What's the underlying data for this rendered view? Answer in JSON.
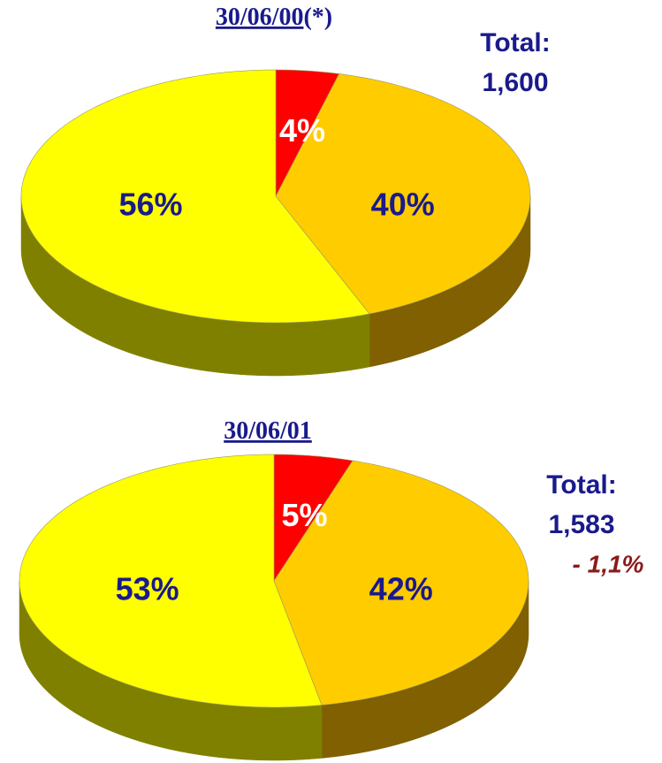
{
  "chart_data": [
    {
      "type": "pie",
      "title": "30/06/00",
      "title_note": "(*)",
      "values": [
        4,
        40,
        56
      ],
      "value_labels": [
        "4%",
        "40%",
        "56%"
      ],
      "colors": [
        "#ff0000",
        "#ffcc00",
        "#ffff00"
      ],
      "side_colors": [
        "#990000",
        "#806000",
        "#808000"
      ],
      "label_colors": [
        "#ffffff",
        "#1a1a8c",
        "#1a1a8c"
      ],
      "annotations": [
        "Total:",
        "1,600"
      ]
    },
    {
      "type": "pie",
      "title": "30/06/01",
      "values": [
        5,
        42,
        53
      ],
      "value_labels": [
        "5%",
        "42%",
        "53%"
      ],
      "colors": [
        "#ff0000",
        "#ffcc00",
        "#ffff00"
      ],
      "side_colors": [
        "#990000",
        "#806000",
        "#808000"
      ],
      "label_colors": [
        "#ffffff",
        "#1a1a8c",
        "#1a1a8c"
      ],
      "annotations": [
        "Total:",
        "1,583",
        "- 1,1%"
      ]
    }
  ]
}
